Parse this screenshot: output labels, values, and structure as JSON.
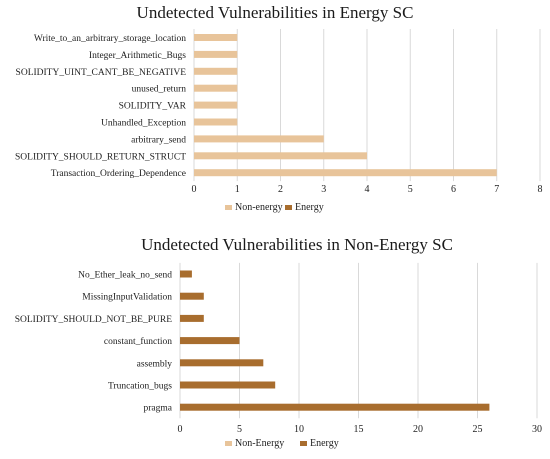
{
  "colors": {
    "non_energy": "#e8c49a",
    "energy": "#a86d2e",
    "grid": "#d9d9d9"
  },
  "chart_data": [
    {
      "type": "bar",
      "orientation": "horizontal",
      "title": "Undetected Vulnerabilities in Energy SC",
      "categories": [
        "Write_to_an_arbitrary_storage_location",
        "Integer_Arithmetic_Bugs",
        "SOLIDITY_UINT_CANT_BE_NEGATIVE",
        "unused_return",
        "SOLIDITY_VAR",
        "Unhandled_Exception",
        "arbitrary_send",
        "SOLIDITY_SHOULD_RETURN_STRUCT",
        "Transaction_Ordering_Dependence"
      ],
      "series": [
        {
          "name": "Non-energy",
          "values": [
            1,
            1,
            1,
            1,
            1,
            1,
            3,
            4,
            7
          ]
        },
        {
          "name": "Energy",
          "values": [
            0,
            0,
            0,
            0,
            0,
            0,
            0,
            0,
            0
          ]
        }
      ],
      "xlim": [
        0,
        8
      ],
      "xticks": [
        "0",
        "1",
        "2",
        "3",
        "4",
        "5",
        "6",
        "7",
        "8"
      ],
      "grid": true,
      "legend_position": "bottom"
    },
    {
      "type": "bar",
      "orientation": "horizontal",
      "title": "Undetected Vulnerabilities in Non-Energy SC",
      "categories": [
        "No_Ether_leak_no_send",
        "MissingInputValidation",
        "SOLIDITY_SHOULD_NOT_BE_PURE",
        "constant_function",
        "assembly",
        "Truncation_bugs",
        "pragma"
      ],
      "series": [
        {
          "name": "Non-Energy",
          "values": [
            0,
            0,
            0,
            0,
            0,
            0,
            0
          ]
        },
        {
          "name": "Energy",
          "values": [
            1,
            2,
            2,
            5,
            7,
            8,
            26
          ]
        }
      ],
      "xlim": [
        0,
        30
      ],
      "xticks": [
        "0",
        "5",
        "10",
        "15",
        "20",
        "25",
        "30"
      ],
      "grid": true,
      "legend_position": "bottom"
    }
  ]
}
